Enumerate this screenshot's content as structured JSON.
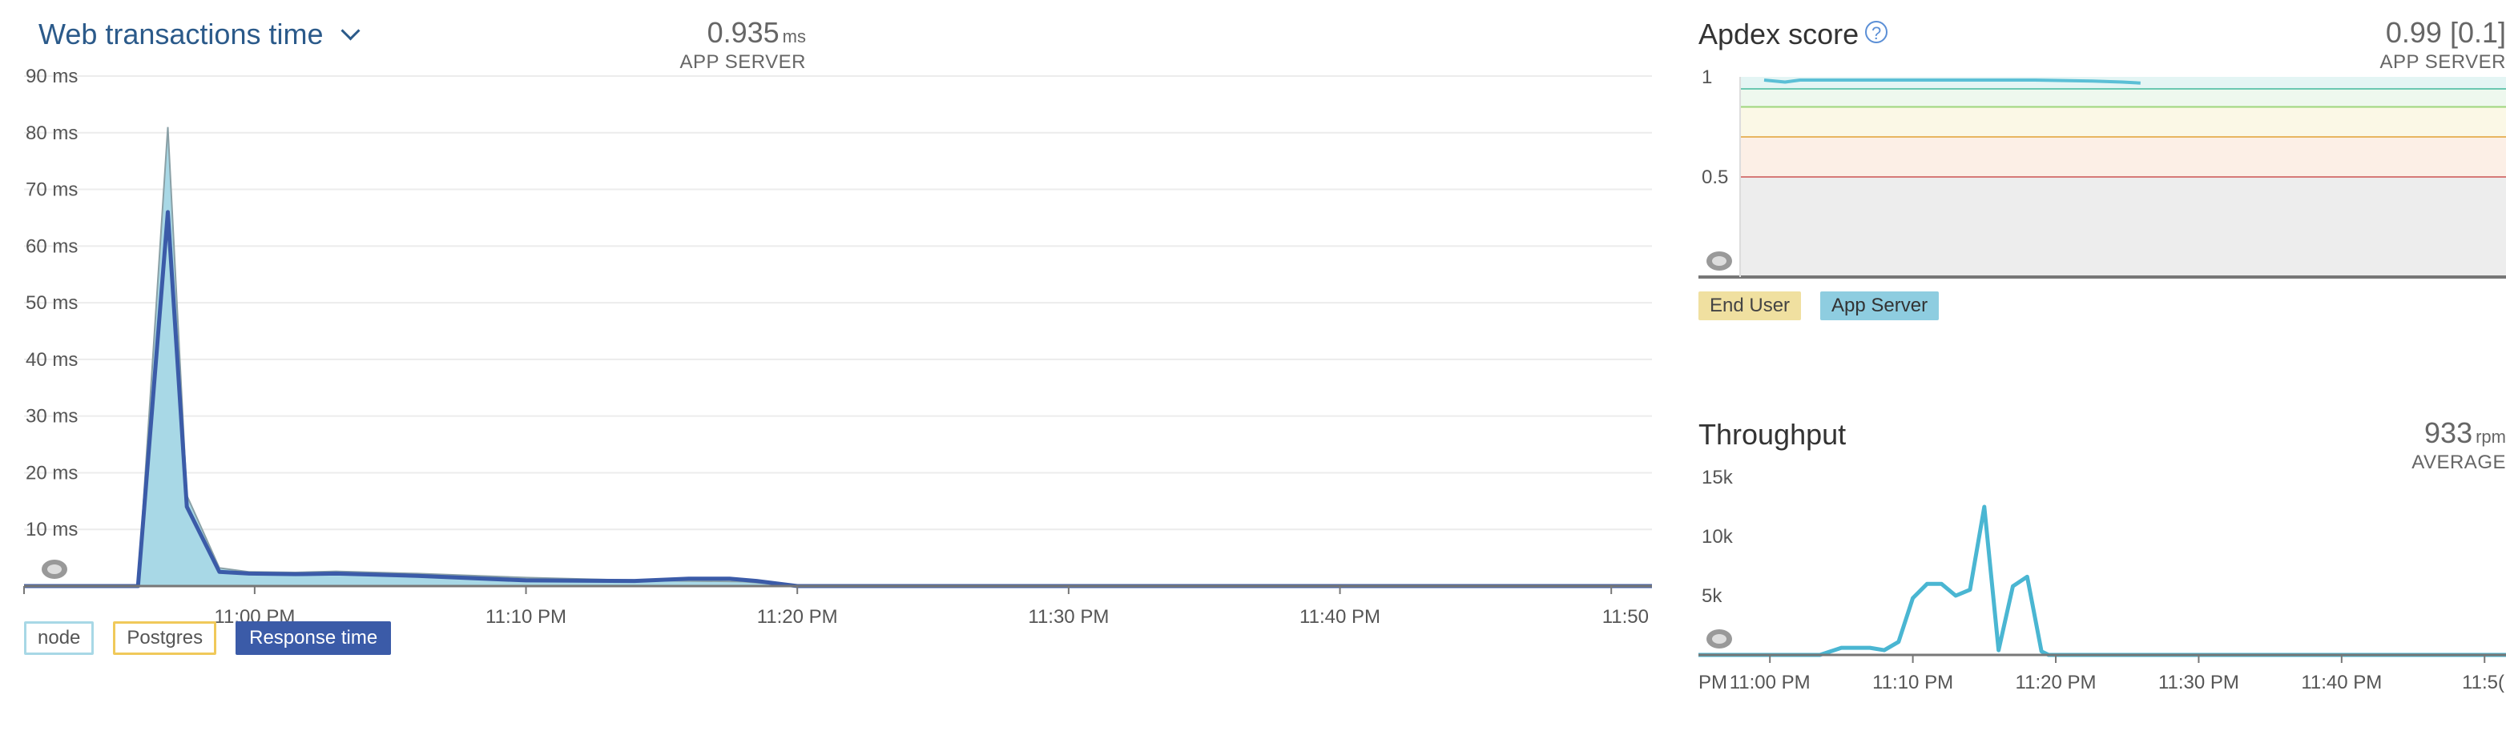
{
  "web": {
    "title": "Web transactions time",
    "value": "0.935",
    "unit": "ms",
    "sub": "APP SERVER",
    "legend": [
      "node",
      "Postgres",
      "Response time"
    ],
    "colors": {
      "node": "#a8d8e6",
      "postgres": "#f0c95a",
      "response": "#3b5ba8"
    }
  },
  "apdex": {
    "title": "Apdex score",
    "help_glyph": "?",
    "value": "0.99 [0.1]",
    "sub": "APP SERVER",
    "legend": [
      "End User",
      "App Server"
    ],
    "colors": {
      "end_user": "#f0e0a0",
      "app_server": "#8ecde0",
      "line": "#5bbfd6"
    }
  },
  "throughput": {
    "title": "Throughput",
    "value": "933",
    "unit": "rpm",
    "sub": "AVERAGE",
    "colors": {
      "line": "#4ab6d2"
    }
  },
  "chart_data": [
    {
      "type": "area",
      "title": "Web transactions time",
      "x_ticks": [
        "11:00 PM",
        "11:10 PM",
        "11:20 PM",
        "11:30 PM",
        "11:40 PM",
        "11:50"
      ],
      "y_ticks": [
        "10 ms",
        "20 ms",
        "30 ms",
        "40 ms",
        "50 ms",
        "60 ms",
        "70 ms",
        "80 ms",
        "90 ms"
      ],
      "ylim": [
        0,
        90
      ],
      "xlim_minutes": [
        -8.5,
        51.5
      ],
      "series": [
        {
          "name": "node",
          "kind": "area",
          "x": [
            -8.5,
            -4.3,
            -3.2,
            -2.5,
            -1.3,
            -0.2,
            1.5,
            3.0,
            6.0,
            10.0,
            14.0,
            18.0,
            20.0,
            51.5
          ],
          "values": [
            0,
            0,
            81,
            16,
            3.2,
            2.5,
            2.4,
            2.6,
            2.2,
            1.5,
            1.0,
            0.8,
            0,
            0
          ]
        },
        {
          "name": "Response time",
          "kind": "line",
          "x": [
            -8.5,
            -4.3,
            -3.2,
            -2.5,
            -1.3,
            -0.2,
            1.5,
            3.0,
            6.0,
            10.0,
            14.0,
            16.0,
            17.5,
            18.5,
            20.0,
            51.5
          ],
          "values": [
            0,
            0,
            66,
            14,
            2.5,
            2.2,
            2.1,
            2.2,
            1.8,
            1.0,
            0.9,
            1.3,
            1.3,
            0.9,
            0,
            0
          ]
        }
      ]
    },
    {
      "type": "line",
      "title": "Apdex score",
      "y_ticks": [
        "1",
        "0.5"
      ],
      "ylim": [
        0,
        1
      ],
      "bands": [
        {
          "from": 0.94,
          "to": 1.0,
          "color": "#e4f5f4"
        },
        {
          "from": 0.85,
          "to": 0.94,
          "color": "#eef8ee"
        },
        {
          "from": 0.7,
          "to": 0.85,
          "color": "#fbf8e6"
        },
        {
          "from": 0.5,
          "to": 0.7,
          "color": "#fcefe6"
        },
        {
          "from": 0.0,
          "to": 0.5,
          "color": "#ededed"
        }
      ],
      "thresholds": [
        {
          "y": 0.94,
          "color": "#6cc8b2"
        },
        {
          "y": 0.85,
          "color": "#9ed67c"
        },
        {
          "y": 0.7,
          "color": "#e8b560"
        },
        {
          "y": 0.5,
          "color": "#d67a78"
        }
      ],
      "series": [
        {
          "name": "App Server",
          "x": [
            0,
            0.035,
            0.06,
            0.08,
            0.45,
            0.55,
            0.6,
            0.63
          ],
          "values": [
            1.0,
            0.99,
            1.0,
            1.0,
            1.0,
            0.995,
            0.99,
            0.985
          ]
        }
      ]
    },
    {
      "type": "line",
      "title": "Throughput",
      "x_ticks": [
        "PM",
        "11:00 PM",
        "11:10 PM",
        "11:20 PM",
        "11:30 PM",
        "11:40 PM",
        "11:5("
      ],
      "y_ticks": [
        "15k",
        "10k",
        "5k"
      ],
      "ylim": [
        0,
        15000
      ],
      "xlim_minutes": [
        -5,
        51.5
      ],
      "series": [
        {
          "name": "Throughput",
          "x": [
            -5,
            3.5,
            5,
            7,
            8,
            9,
            10,
            11,
            12,
            13,
            14,
            15,
            16,
            17,
            18,
            19,
            19.5,
            51.5
          ],
          "values": [
            0,
            0,
            600,
            600,
            400,
            1100,
            4800,
            6000,
            6000,
            5000,
            5500,
            12500,
            400,
            5800,
            6600,
            300,
            0,
            0
          ]
        }
      ]
    }
  ]
}
